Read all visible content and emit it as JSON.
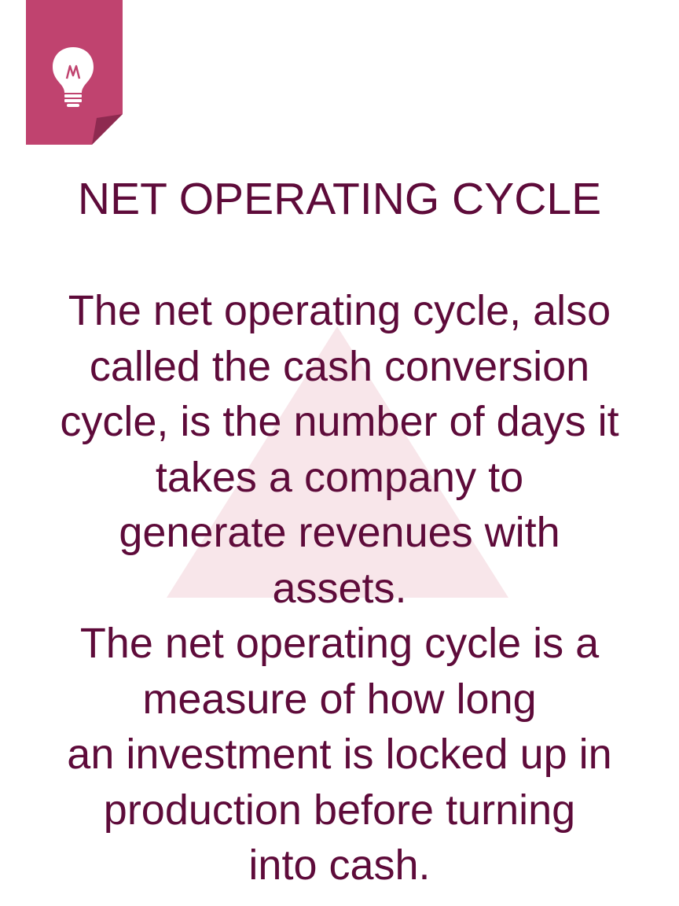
{
  "page": {
    "title": "NET OPERATING CYCLE",
    "paragraphs": [
      [
        "The net operating cycle, also",
        "called the cash conversion",
        "cycle, is the number of days it",
        "takes a company to",
        "generate revenues with",
        "assets."
      ],
      [
        "The net operating cycle is a",
        "measure of how long",
        "an investment is locked up in",
        "production before turning",
        "into cash."
      ]
    ]
  },
  "icons": {
    "corner_badge": "folded-note-icon",
    "badge_symbol": "lightbulb-icon",
    "background_mark": "triangle-watermark"
  },
  "colors": {
    "text": "#5e0b3a",
    "badge": "#c0436f",
    "badge_fold": "#8e2a50",
    "watermark": "#f7e4e8",
    "background": "#ffffff"
  }
}
